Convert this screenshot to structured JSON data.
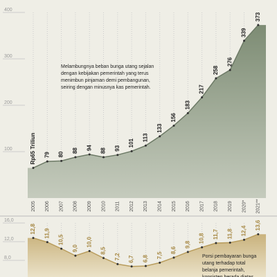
{
  "chart_data": [
    {
      "type": "area",
      "x": [
        "2005",
        "2006",
        "2007",
        "2008",
        "2009",
        "2010",
        "2011",
        "2012",
        "2013",
        "2014",
        "2015",
        "2016",
        "2017",
        "2018",
        "2019",
        "2020*",
        "2021**"
      ],
      "values": [
        65,
        79,
        80,
        88,
        94,
        88,
        93,
        101,
        113,
        133,
        156,
        183,
        217,
        258,
        276,
        339,
        373
      ],
      "value_labels": [
        "Rp65 Triliun",
        "79",
        "80",
        "88",
        "94",
        "88",
        "93",
        "101",
        "113",
        "133",
        "156",
        "183",
        "217",
        "258",
        "276",
        "339",
        "373"
      ],
      "color": "#8c9a84",
      "ylim": [
        0,
        400
      ],
      "yticks": [
        100,
        200,
        300,
        400
      ],
      "annotation": "Melambungnya beban bunga utang sejalan dengan kebijakan pemerintah yang terus menimbun pinjaman demi pembangunan, seiring dengan minusnya kas pemerintah."
    },
    {
      "type": "area",
      "values": [
        12.8,
        11.9,
        10.5,
        9.0,
        10.0,
        8.5,
        7.2,
        6.7,
        6.8,
        7.5,
        8.6,
        9.8,
        10.8,
        11.7,
        11.8,
        12.4,
        13.6
      ],
      "value_labels": [
        "12,8",
        "11,9",
        "10,5",
        "9,0",
        "10,0",
        "8,5",
        "7,2",
        "6,7",
        "6,8",
        "7,5",
        "8,6",
        "9,8",
        "10,8",
        "11,7",
        "11,8",
        "12,4",
        "13,6"
      ],
      "color": "#cdb98a",
      "ylim": [
        4,
        16
      ],
      "yticks": [
        {
          "value": 8,
          "label": "8,0"
        },
        {
          "value": 12,
          "label": "12,0"
        },
        {
          "value": 16,
          "label": "16,0"
        }
      ],
      "annotation": "Porsi pembayaran bunga utang terhadap total belanja pemerintah, konsisten berada diatas"
    }
  ]
}
